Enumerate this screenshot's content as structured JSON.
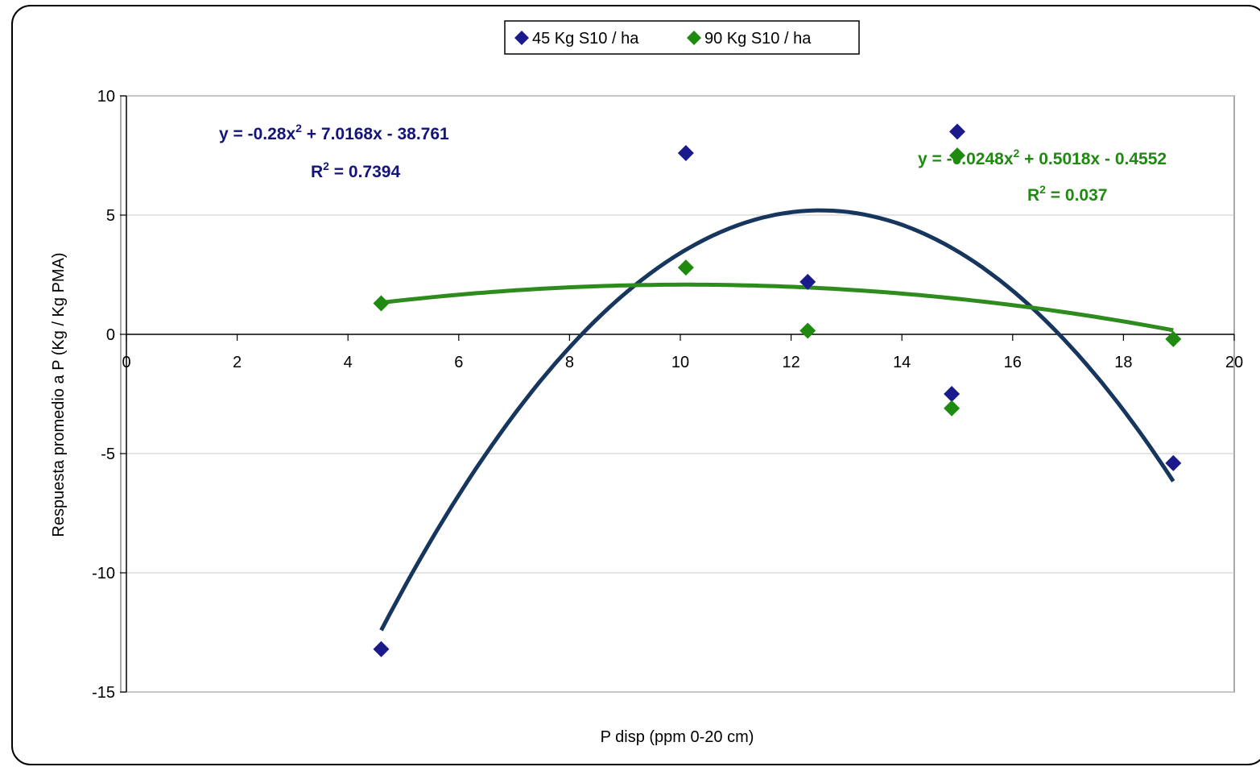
{
  "chart_data": {
    "type": "scatter",
    "xlabel": "P disp (ppm 0-20 cm)",
    "ylabel": "Respuesta promedio a P (Kg / Kg PMA)",
    "xlim": [
      0,
      20
    ],
    "ylim": [
      -15,
      10
    ],
    "x_ticks": [
      "0",
      "2",
      "4",
      "6",
      "8",
      "10",
      "12",
      "14",
      "16",
      "18",
      "20"
    ],
    "y_ticks": [
      "10",
      "5",
      "0",
      "-5",
      "-10",
      "-15"
    ],
    "grid": "horizontal",
    "legend_position": "top",
    "series": [
      {
        "name": "45 Kg S10 / ha",
        "color": "#1A1A8C",
        "marker": "diamond",
        "points": [
          [
            4.6,
            -13.2
          ],
          [
            10.1,
            7.6
          ],
          [
            12.3,
            2.2
          ],
          [
            14.9,
            -2.5
          ],
          [
            15.0,
            8.5
          ],
          [
            18.9,
            -5.4
          ]
        ],
        "trendline": {
          "type": "polynomial",
          "coefficients": [
            -0.28,
            7.0168,
            -38.761
          ],
          "x_range": [
            4.6,
            18.9
          ],
          "color": "#17365D"
        },
        "equation": {
          "lead": "y = -0.28x",
          "exp": "2",
          "rest": " + 7.0168x - 38.761"
        },
        "r2": {
          "lead": "R",
          "exp": "2",
          "rest": " = 0.7394"
        }
      },
      {
        "name": "90 Kg S10 / ha",
        "color": "#1F8A10",
        "marker": "diamond",
        "points": [
          [
            4.6,
            1.3
          ],
          [
            10.1,
            2.8
          ],
          [
            12.3,
            0.15
          ],
          [
            14.9,
            -3.1
          ],
          [
            15.0,
            7.5
          ],
          [
            18.9,
            -0.2
          ]
        ],
        "trendline": {
          "type": "polynomial",
          "coefficients": [
            -0.0248,
            0.5018,
            -0.4552
          ],
          "x_range": [
            4.6,
            18.9
          ],
          "color": "#2E8B1E"
        },
        "equation": {
          "lead": "y = -0.0248x",
          "exp": "2",
          "rest": " + 0.5018x - 0.4552"
        },
        "r2": {
          "lead": "R",
          "exp": "2",
          "rest": " = 0.037"
        }
      }
    ]
  }
}
